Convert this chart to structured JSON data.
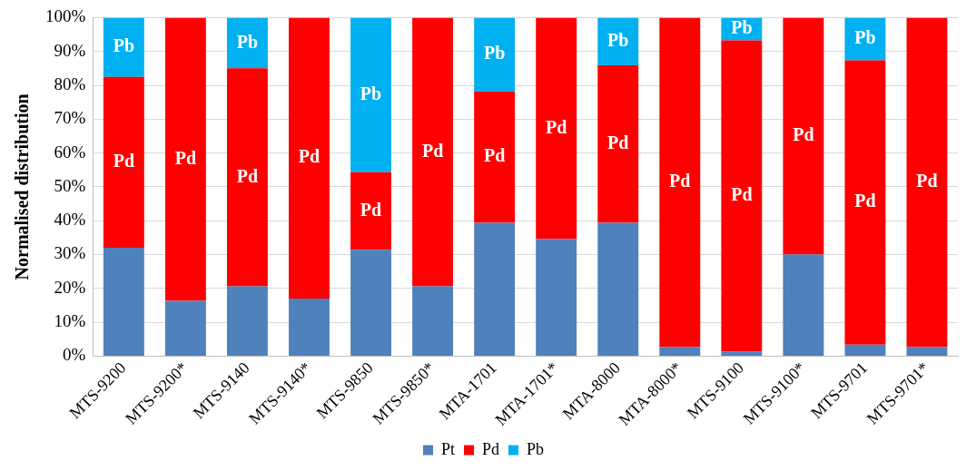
{
  "chart_data": {
    "type": "bar",
    "stacked": true,
    "ylabel": "Normalised distribution",
    "categories": [
      "MTS-9200",
      "MTS-9200*",
      "MTS-9140",
      "MTS-9140*",
      "MTS-9850",
      "MTS-9850*",
      "MTA-1701",
      "MTA-1701*",
      "MTA-8000",
      "MTA-8000*",
      "MTS-9100",
      "MTS-9100*",
      "MTS-9701",
      "MTS-9701*"
    ],
    "series": [
      {
        "name": "Pt",
        "color": "#4f81bd",
        "values": [
          32,
          16.3,
          20.6,
          17,
          31.4,
          20.6,
          39.4,
          34.6,
          39.4,
          2.7,
          1.4,
          30,
          3.4,
          2.7
        ]
      },
      {
        "name": "Pd",
        "color": "#ff0000",
        "values": [
          50.5,
          83.7,
          64.4,
          83,
          22.9,
          79.4,
          38.8,
          65.4,
          46.5,
          97.3,
          91.9,
          70,
          84,
          97.3
        ],
        "value_labels": [
          "Pd",
          "Pd",
          "Pd",
          "Pd",
          "Pd",
          "Pd",
          "Pd",
          "Pd",
          "Pd",
          "Pd",
          "Pd",
          "Pd",
          "Pd",
          "Pd"
        ]
      },
      {
        "name": "Pb",
        "color": "#00b0f0",
        "values": [
          17.5,
          0,
          15,
          0,
          45.7,
          0,
          21.8,
          0,
          14.1,
          0,
          6.7,
          0,
          12.6,
          0
        ],
        "value_labels": [
          "Pb",
          null,
          "Pb",
          null,
          "Pb",
          null,
          "Pb",
          null,
          "Pb",
          null,
          "Pb",
          null,
          "Pb",
          null
        ]
      }
    ],
    "ylim": [
      0,
      100
    ],
    "yticks": [
      {
        "value": 0,
        "label": "0%"
      },
      {
        "value": 10,
        "label": "10%"
      },
      {
        "value": 20,
        "label": "20%"
      },
      {
        "value": 30,
        "label": "30%"
      },
      {
        "value": 40,
        "label": "40%"
      },
      {
        "value": 50,
        "label": "50%"
      },
      {
        "value": 60,
        "label": "60%"
      },
      {
        "value": 70,
        "label": "70%"
      },
      {
        "value": 80,
        "label": "80%"
      },
      {
        "value": 90,
        "label": "90%"
      },
      {
        "value": 100,
        "label": "100%"
      }
    ],
    "grid": "y",
    "legend": "bottom"
  }
}
